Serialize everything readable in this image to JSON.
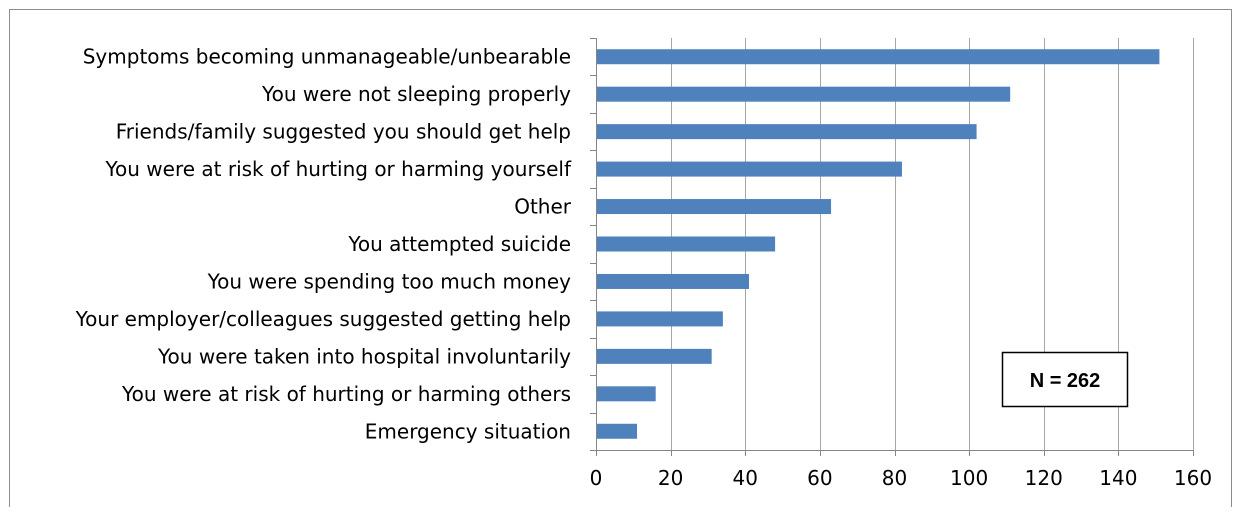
{
  "chart_data": {
    "type": "bar",
    "orientation": "horizontal",
    "categories": [
      "Symptoms becoming unmanageable/unbearable",
      "You were not sleeping properly",
      "Friends/family suggested you should get help",
      "You were at risk of hurting or harming yourself",
      "Other",
      "You attempted suicide",
      "You were spending too much money",
      "Your employer/colleagues suggested getting help",
      "You were taken into hospital involuntarily",
      "You were at risk of hurting or harming others",
      "Emergency situation"
    ],
    "values": [
      151,
      111,
      102,
      82,
      63,
      48,
      41,
      34,
      31,
      16,
      11
    ],
    "xlim": [
      0,
      160
    ],
    "xticks": [
      0,
      20,
      40,
      60,
      80,
      100,
      120,
      140,
      160
    ],
    "grid": "vertical",
    "bar_color": "#4F81BD",
    "gridline_color": "#A6A6A6",
    "annotation": "N = 262"
  }
}
